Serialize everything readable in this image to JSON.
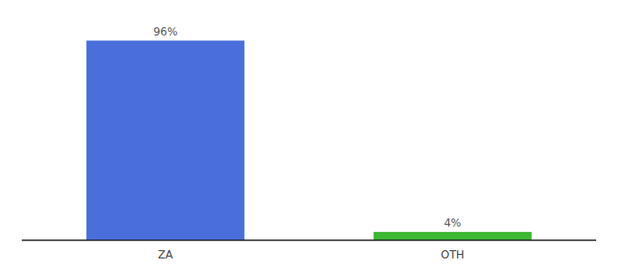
{
  "chart_data": {
    "type": "bar",
    "categories": [
      "ZA",
      "OTH"
    ],
    "values": [
      96,
      4
    ],
    "value_labels": [
      "96%",
      "4%"
    ],
    "colors": [
      "#4a6fdc",
      "#3cb832"
    ],
    "ylim": [
      0,
      105
    ],
    "data_labels": true,
    "tick_labels": "x"
  }
}
